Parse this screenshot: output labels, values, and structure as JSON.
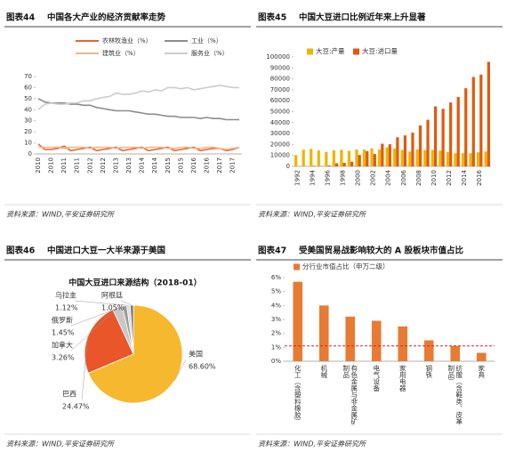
{
  "chart_data": [
    {
      "type": "line",
      "label": "图表44",
      "title": "中国各大产业的经济贡献率走势",
      "source": "资料来源：WIND,平安证券研究所",
      "categories": [
        "2010",
        null,
        "2010",
        null,
        "2011",
        null,
        "2011",
        null,
        "2012",
        null,
        "2012",
        null,
        "2013",
        null,
        "2013",
        null,
        "2014",
        null,
        "2014",
        null,
        "2015",
        null,
        "2015",
        null,
        "2016",
        null,
        "2016",
        null,
        "2017",
        null,
        "2017",
        null
      ],
      "series": [
        {
          "name": "农林牧渔业（%）",
          "color": "#e8652b",
          "values": [
            9,
            4,
            4,
            5,
            7,
            3,
            4,
            5,
            6,
            3,
            4,
            5,
            6,
            3,
            4,
            5,
            6,
            3,
            4,
            5,
            6,
            3,
            4,
            5,
            6,
            3,
            4,
            5,
            5,
            3,
            4,
            6
          ]
        },
        {
          "name": "工业（%）",
          "color": "#8c8c8c",
          "values": [
            50,
            47,
            46,
            46,
            46,
            45,
            45,
            44,
            44,
            42,
            41,
            40,
            39,
            39,
            39,
            38,
            37,
            36,
            36,
            35,
            34,
            34,
            33,
            33,
            33,
            32,
            33,
            32,
            32,
            31,
            31,
            31
          ]
        },
        {
          "name": "建筑业（%）",
          "color": "#f5b48a",
          "values": [
            6,
            6,
            6,
            6,
            5,
            6,
            6,
            6,
            5,
            6,
            6,
            6,
            5,
            6,
            6,
            6,
            5,
            6,
            6,
            6,
            5,
            5,
            6,
            6,
            5,
            5,
            6,
            6,
            5,
            4,
            5,
            6
          ]
        },
        {
          "name": "服务业（%）",
          "color": "#cccccc",
          "values": [
            40,
            45,
            46,
            45,
            45,
            46,
            46,
            48,
            48,
            50,
            51,
            52,
            55,
            54,
            54,
            55,
            57,
            56,
            58,
            57,
            60,
            60,
            59,
            60,
            58,
            59,
            60,
            61,
            62,
            61,
            60,
            60
          ]
        }
      ],
      "ylim": [
        0,
        70
      ],
      "yticks": [
        0,
        10,
        20,
        30,
        40,
        50,
        60,
        70
      ],
      "grid": false
    },
    {
      "type": "bar",
      "label": "图表45",
      "title": "中国大豆进口比例近年来上升显著",
      "source": "资料来源：WIND,平安证券研究所",
      "categories": [
        "1992",
        null,
        "1994",
        null,
        "1996",
        null,
        "1998",
        null,
        "2000",
        null,
        "2002",
        null,
        "2004",
        null,
        "2006",
        null,
        "2008",
        null,
        "2010",
        null,
        "2012",
        null,
        "2014",
        null,
        "2016",
        null
      ],
      "series": [
        {
          "name": "大豆:产量",
          "color": "#f0b400",
          "values": [
            10300,
            15300,
            16000,
            14500,
            13200,
            14700,
            15200,
            14200,
            15400,
            15400,
            16500,
            15400,
            17400,
            16400,
            15100,
            13500,
            15500,
            14980,
            15100,
            14500,
            13000,
            12000,
            12100,
            12100,
            12900,
            13600
          ]
        },
        {
          "name": "大豆:进口量",
          "color": "#e05a10",
          "values": [
            100,
            100,
            500,
            300,
            800,
            2800,
            3200,
            4300,
            10400,
            13900,
            11300,
            20700,
            20200,
            26600,
            28300,
            30800,
            37400,
            42600,
            54800,
            52600,
            58400,
            63400,
            71400,
            81700,
            83900,
            95500
          ]
        }
      ],
      "ylim": [
        0,
        100000
      ],
      "yticks": [
        0,
        10000,
        20000,
        30000,
        40000,
        50000,
        60000,
        70000,
        80000,
        90000,
        100000
      ],
      "grid": false
    },
    {
      "type": "pie",
      "label": "图表46",
      "title": "中国进口大豆一大半来源于美国",
      "subtitle": "中国大豆进口来源结构（2018-01）",
      "source": "资料来源：WIND,平安证券研究所",
      "categories": [
        "美国",
        "巴西",
        "加拿大",
        "俄罗斯",
        "乌拉圭",
        "阿根廷"
      ],
      "values": [
        68.6,
        24.47,
        3.26,
        1.45,
        1.12,
        1.05
      ],
      "value_labels": [
        "68.60%",
        "24.47%",
        "3.26%",
        "1.45%",
        "1.12%",
        "1.05%"
      ],
      "colors": [
        "#f5b82e",
        "#e8562a",
        "#c8c8c8",
        "#9a9a9a",
        "#dddddd",
        "#777777"
      ]
    },
    {
      "type": "bar",
      "label": "图表47",
      "title": "受美国贸易战影响较大的 A 股板块市值占比",
      "source": "资料来源：WIND,平安证券研究所",
      "categories": [
        "化工（含塑料橡胶）",
        "机械",
        "有色金属与非金属矿制品",
        "电气设备",
        "家用电器",
        "钢铁",
        "纺服（含鞋类、皮革制品）",
        "家具"
      ],
      "series": [
        {
          "name": "分行业市值占比（申万二级）",
          "color": "#e87b33",
          "values": [
            5.7,
            4.0,
            3.2,
            2.9,
            2.5,
            1.5,
            1.1,
            0.6
          ]
        }
      ],
      "ylim": [
        0,
        6
      ],
      "yticks": [
        {
          "value": 0,
          "label": "0%"
        },
        {
          "value": 1,
          "label": "1%"
        },
        {
          "value": 2,
          "label": "2%"
        },
        {
          "value": 3,
          "label": "3%"
        },
        {
          "value": 4,
          "label": "4%"
        },
        {
          "value": 5,
          "label": "5%"
        },
        {
          "value": 6,
          "label": "6%"
        }
      ],
      "hline": {
        "value": 1.1,
        "color": "#e02020"
      },
      "grid": false
    }
  ]
}
